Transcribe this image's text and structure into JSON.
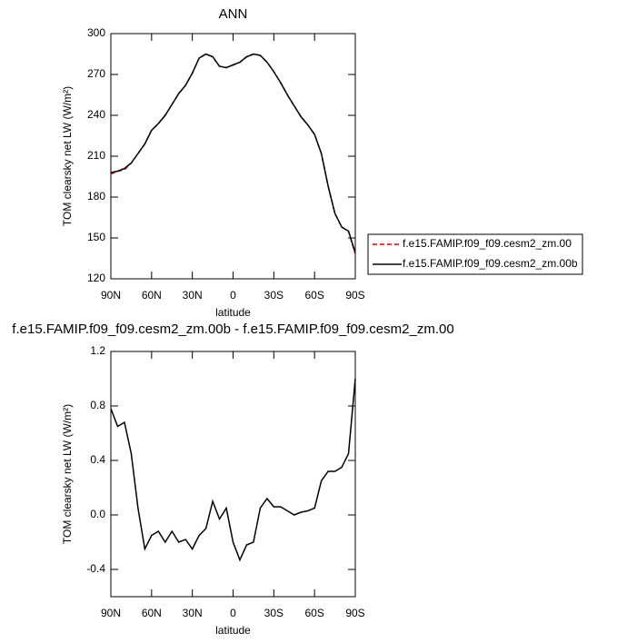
{
  "chart_data": [
    {
      "type": "line",
      "title": "ANN",
      "xlabel": "latitude",
      "ylabel": "TOM clearsky net LW (W/m²)",
      "x": [
        90,
        85,
        80,
        75,
        70,
        65,
        60,
        55,
        50,
        45,
        40,
        35,
        30,
        25,
        20,
        15,
        10,
        5,
        0,
        -5,
        -10,
        -15,
        -20,
        -25,
        -30,
        -35,
        -40,
        -45,
        -50,
        -55,
        -60,
        -65,
        -70,
        -75,
        -80,
        -85,
        -90
      ],
      "xlim": [
        90,
        -90
      ],
      "xticks": [
        {
          "value": 90,
          "label": "90N"
        },
        {
          "value": 60,
          "label": "60N"
        },
        {
          "value": 30,
          "label": "30N"
        },
        0,
        {
          "value": -30,
          "label": "30S"
        },
        {
          "value": -60,
          "label": "60S"
        },
        {
          "value": -90,
          "label": "90S"
        }
      ],
      "ylim": [
        120,
        300
      ],
      "yticks": [
        120,
        150,
        180,
        210,
        240,
        270,
        300
      ],
      "series": [
        {
          "name": "f.e15.FAMIP.f09_f09.cesm2_zm.00",
          "color": "#e00000",
          "linestyle": "dashed",
          "values": [
            197,
            199,
            200,
            205,
            212,
            219,
            229,
            234,
            240,
            248,
            256,
            262,
            271,
            282,
            285,
            283,
            276,
            275,
            277,
            279,
            283,
            285,
            284,
            279,
            272,
            264,
            255,
            247,
            239,
            233,
            226,
            212,
            188,
            168,
            158,
            155,
            138
          ]
        },
        {
          "name": "f.e15.FAMIP.f09_f09.cesm2_zm.00b",
          "color": "#000000",
          "linestyle": "solid",
          "values": [
            198,
            199,
            201,
            205,
            212,
            219,
            229,
            234,
            240,
            248,
            256,
            262,
            271,
            282,
            285,
            283,
            276,
            275,
            277,
            279,
            283,
            285,
            284,
            279,
            272,
            264,
            255,
            247,
            239,
            233,
            226,
            212,
            188,
            168,
            158,
            155,
            139
          ]
        }
      ]
    },
    {
      "type": "line",
      "title": "f.e15.FAMIP.f09_f09.cesm2_zm.00b - f.e15.FAMIP.f09_f09.cesm2_zm.00",
      "xlabel": "latitude",
      "ylabel": "TOM clearsky net LW (W/m²)",
      "x": [
        90,
        85,
        80,
        75,
        70,
        65,
        60,
        55,
        50,
        45,
        40,
        35,
        30,
        25,
        20,
        15,
        10,
        5,
        0,
        -5,
        -10,
        -15,
        -20,
        -25,
        -30,
        -35,
        -40,
        -45,
        -50,
        -55,
        -60,
        -65,
        -70,
        -75,
        -80,
        -85,
        -90
      ],
      "xlim": [
        90,
        -90
      ],
      "xticks": [
        {
          "value": 90,
          "label": "90N"
        },
        {
          "value": 60,
          "label": "60N"
        },
        {
          "value": 30,
          "label": "30N"
        },
        0,
        {
          "value": -30,
          "label": "30S"
        },
        {
          "value": -60,
          "label": "60S"
        },
        {
          "value": -90,
          "label": "90S"
        }
      ],
      "ylim": [
        -0.6,
        1.2
      ],
      "yticks": [
        -0.4,
        {
          "value": 0,
          "label": "0.0"
        },
        0.4,
        0.8,
        1.2
      ],
      "series": [
        {
          "color": "#000000",
          "linestyle": "solid",
          "values": [
            0.78,
            0.65,
            0.68,
            0.45,
            0.05,
            -0.25,
            -0.15,
            -0.12,
            -0.2,
            -0.12,
            -0.2,
            -0.18,
            -0.25,
            -0.15,
            -0.1,
            0.1,
            -0.03,
            0.05,
            -0.2,
            -0.33,
            -0.22,
            -0.2,
            0.05,
            0.12,
            0.06,
            0.06,
            0.03,
            0.0,
            0.02,
            0.03,
            0.05,
            0.25,
            0.32,
            0.32,
            0.35,
            0.45,
            1.0
          ]
        }
      ]
    }
  ]
}
